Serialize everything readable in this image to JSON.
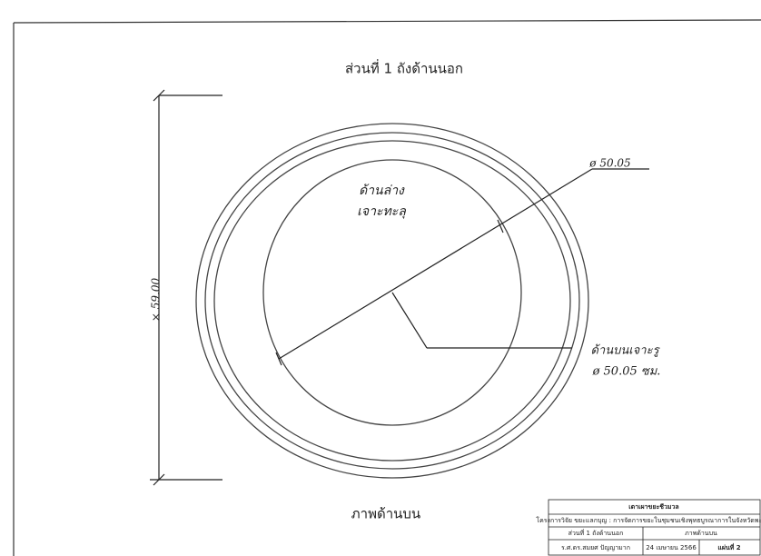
{
  "drawing": {
    "title": "ส่วนที่ 1 ถังด้านนอก",
    "view_label": "ภาพด้านบน",
    "dimension_diameter": "ø 50.05",
    "dimension_height": "× 59.00",
    "note_bottom": [
      "ด้านล่าง",
      "เจาะทะลุ"
    ],
    "note_top": [
      "ด้านบนเจาะรู",
      "ø 50.05 ซม."
    ]
  },
  "title_block": {
    "heading": "เตาเผาขยะชีวมวล",
    "project": "โครงการวิจัย ขยะแลกบุญ : การจัดการขยะในชุมชนเชิงพุทธบูรณาการในจังหวัดพะเยา",
    "part": "ส่วนที่ 1 ถังด้านนอก",
    "view": "ภาพด้านบน",
    "author": "ร.ศ.ดร.สมยศ ปัญญามาก",
    "date": "24 เมษายน 2566",
    "sheet": "แผ่นที่ 2"
  }
}
